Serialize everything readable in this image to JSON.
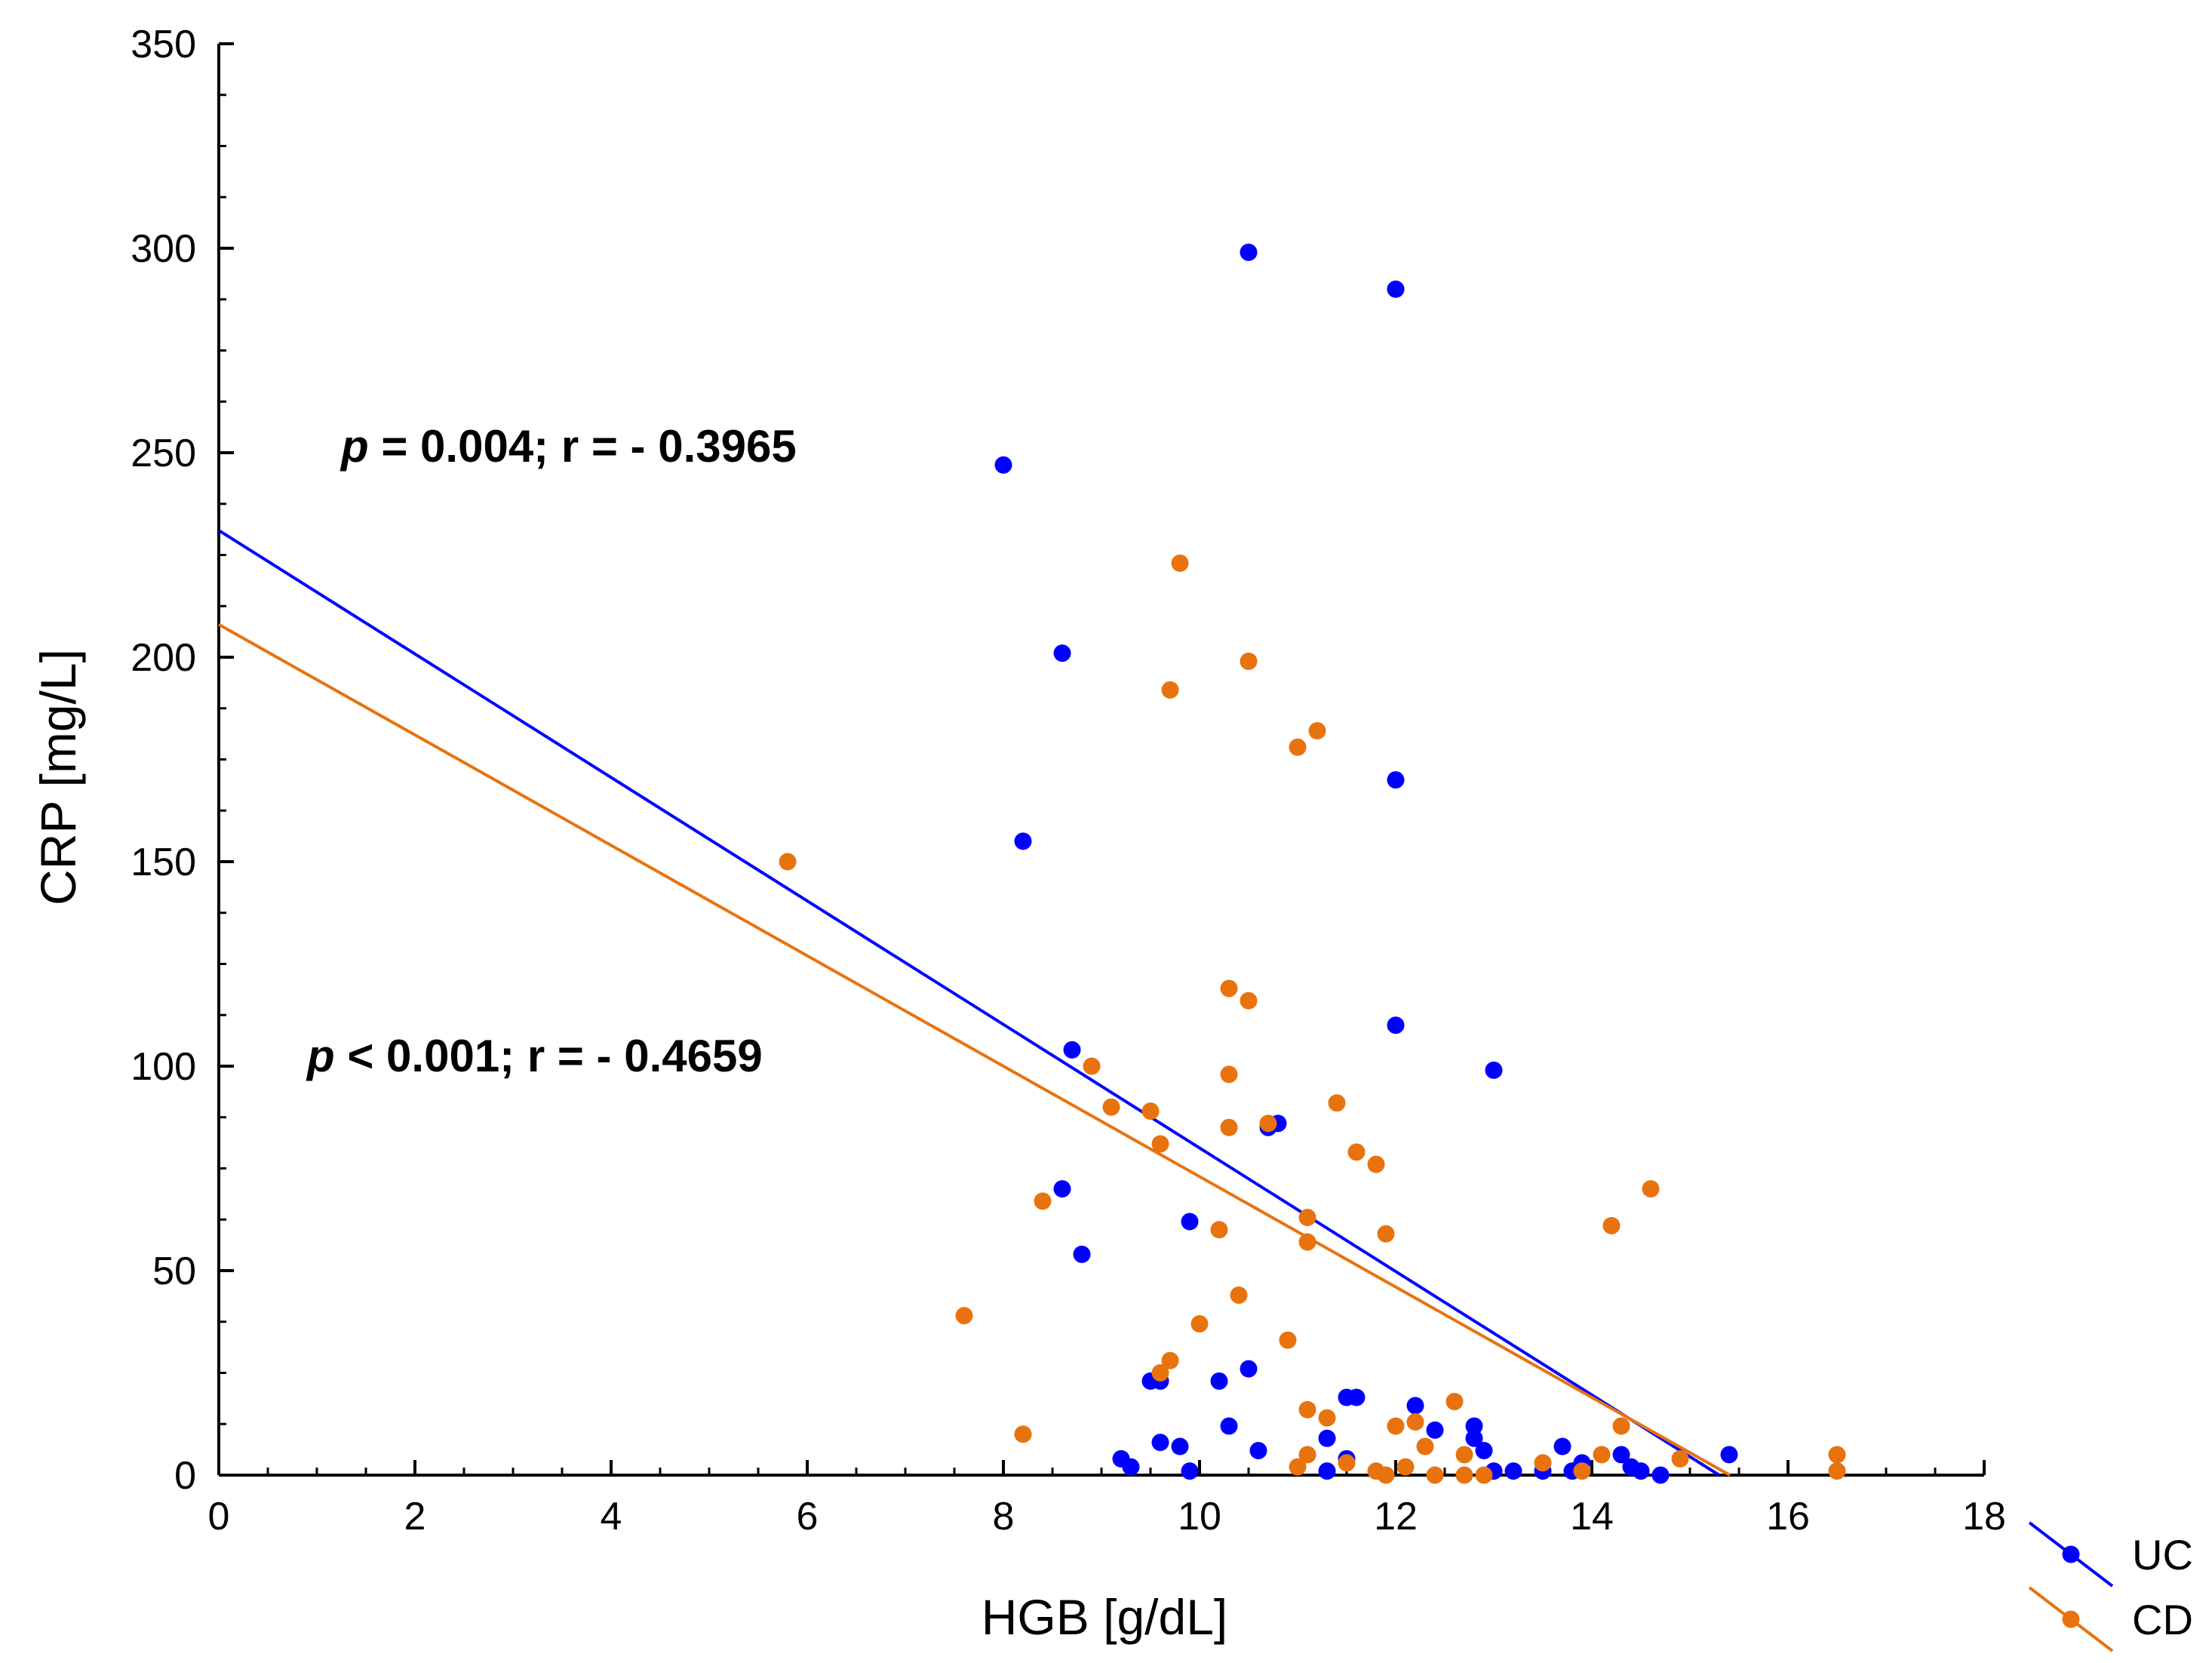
{
  "chart_data": {
    "type": "scatter",
    "title": "",
    "xlabel": "HGB [g/dL]",
    "ylabel": "CRP [mg/L]",
    "xlim": [
      0,
      18
    ],
    "ylim": [
      0,
      350
    ],
    "x_ticks": [
      0,
      2,
      4,
      6,
      8,
      10,
      12,
      14,
      16,
      18
    ],
    "y_ticks": [
      0,
      50,
      100,
      150,
      200,
      250,
      300,
      350
    ],
    "grid": false,
    "legend_position": "bottom-right outside",
    "annotations": [
      {
        "id": "uc",
        "p": "p",
        "rest": " = 0.004; r = - 0.3965"
      },
      {
        "id": "cd",
        "p": "p",
        "rest": " < 0.001; r = - 0.4659"
      }
    ],
    "series": [
      {
        "name": "UC",
        "color": "#0000ff",
        "regression": {
          "intercept": 231,
          "slope": -15.1
        },
        "points": [
          [
            10.5,
            299
          ],
          [
            12.0,
            290
          ],
          [
            8.0,
            247
          ],
          [
            8.6,
            201
          ],
          [
            12.0,
            170
          ],
          [
            8.2,
            155
          ],
          [
            12.0,
            110
          ],
          [
            8.7,
            104
          ],
          [
            13.0,
            99
          ],
          [
            10.7,
            85
          ],
          [
            10.8,
            86
          ],
          [
            8.6,
            70
          ],
          [
            9.9,
            62
          ],
          [
            8.8,
            54
          ],
          [
            10.5,
            26
          ],
          [
            9.5,
            23
          ],
          [
            9.6,
            23
          ],
          [
            10.2,
            23
          ],
          [
            11.5,
            19
          ],
          [
            11.6,
            19
          ],
          [
            12.2,
            17
          ],
          [
            10.3,
            12
          ],
          [
            12.4,
            11
          ],
          [
            12.8,
            12
          ],
          [
            11.3,
            9
          ],
          [
            9.6,
            8
          ],
          [
            9.8,
            7
          ],
          [
            10.6,
            6
          ],
          [
            12.8,
            9
          ],
          [
            12.9,
            6
          ],
          [
            13.7,
            7
          ],
          [
            14.3,
            5
          ],
          [
            15.4,
            5
          ],
          [
            11.5,
            4
          ],
          [
            9.2,
            4
          ],
          [
            9.3,
            2
          ],
          [
            9.9,
            1
          ],
          [
            11.3,
            1
          ],
          [
            13.0,
            1
          ],
          [
            13.2,
            1
          ],
          [
            13.5,
            1
          ],
          [
            13.8,
            1
          ],
          [
            13.9,
            3
          ],
          [
            14.4,
            2
          ],
          [
            14.5,
            1
          ],
          [
            14.7,
            0
          ]
        ]
      },
      {
        "name": "CD",
        "color": "#e8730e",
        "regression": {
          "intercept": 208,
          "slope": -13.5
        },
        "points": [
          [
            9.8,
            223
          ],
          [
            10.5,
            199
          ],
          [
            9.7,
            192
          ],
          [
            11.2,
            182
          ],
          [
            11.0,
            178
          ],
          [
            5.8,
            150
          ],
          [
            10.3,
            119
          ],
          [
            10.5,
            116
          ],
          [
            8.9,
            100
          ],
          [
            10.3,
            98
          ],
          [
            9.1,
            90
          ],
          [
            9.5,
            89
          ],
          [
            11.4,
            91
          ],
          [
            10.3,
            85
          ],
          [
            10.7,
            86
          ],
          [
            9.6,
            81
          ],
          [
            11.6,
            79
          ],
          [
            11.8,
            76
          ],
          [
            14.6,
            70
          ],
          [
            8.4,
            67
          ],
          [
            11.1,
            63
          ],
          [
            14.2,
            61
          ],
          [
            10.2,
            60
          ],
          [
            11.9,
            59
          ],
          [
            11.1,
            57
          ],
          [
            10.4,
            44
          ],
          [
            7.6,
            39
          ],
          [
            10.0,
            37
          ],
          [
            10.9,
            33
          ],
          [
            9.7,
            28
          ],
          [
            9.6,
            25
          ],
          [
            12.6,
            18
          ],
          [
            11.1,
            16
          ],
          [
            11.3,
            14
          ],
          [
            14.3,
            12
          ],
          [
            12.0,
            12
          ],
          [
            12.2,
            13
          ],
          [
            8.2,
            10
          ],
          [
            12.3,
            7
          ],
          [
            11.1,
            5
          ],
          [
            12.7,
            5
          ],
          [
            14.1,
            5
          ],
          [
            11.5,
            3
          ],
          [
            11.0,
            2
          ],
          [
            12.1,
            2
          ],
          [
            13.5,
            3
          ],
          [
            14.9,
            4
          ],
          [
            16.5,
            5
          ],
          [
            16.5,
            1
          ],
          [
            11.8,
            1
          ],
          [
            11.9,
            0
          ],
          [
            12.4,
            0
          ],
          [
            12.7,
            0
          ],
          [
            12.9,
            0
          ],
          [
            13.9,
            1
          ]
        ]
      }
    ]
  }
}
